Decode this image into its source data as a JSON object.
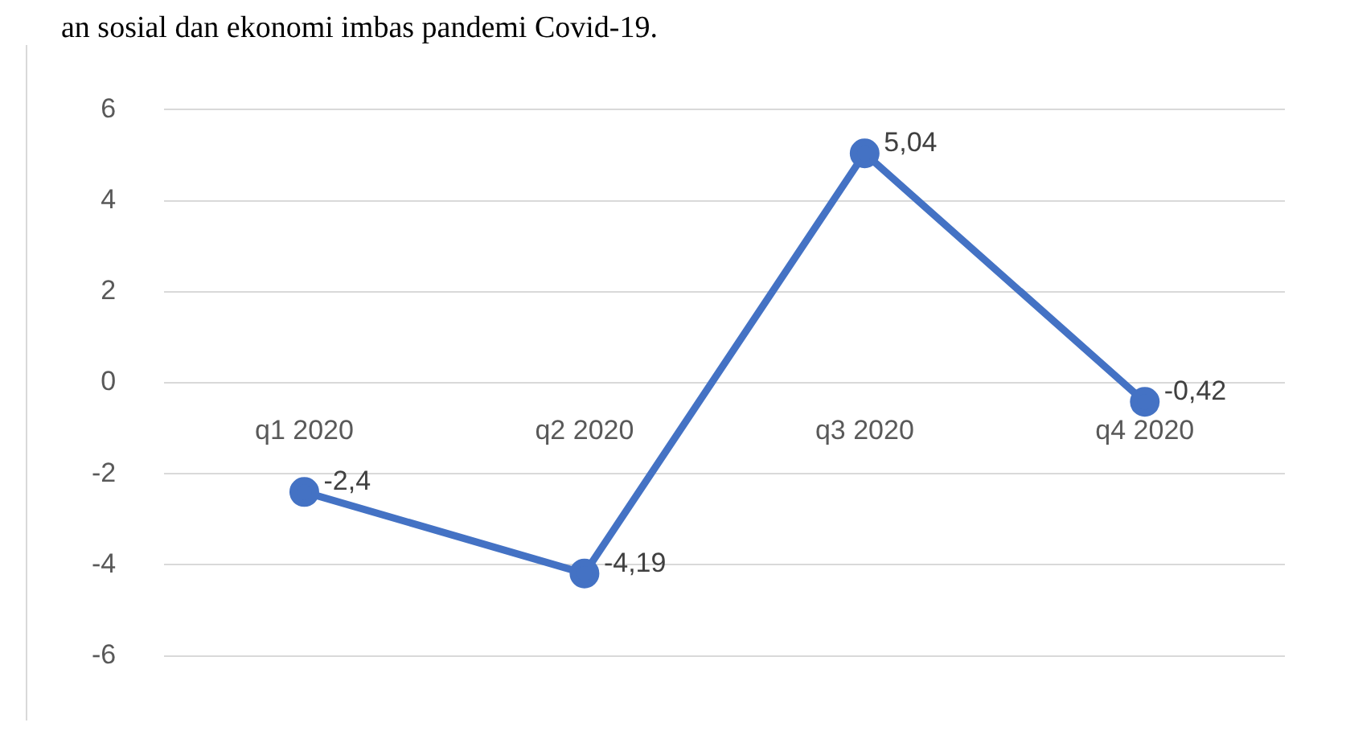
{
  "chart_data": {
    "type": "line",
    "annotations": [
      "an sosial dan ekonomi imbas pandemi Covid-19."
    ],
    "categories": [
      "q1 2020",
      "q2 2020",
      "q3 2020",
      "q4 2020"
    ],
    "series": [
      {
        "color": "#4472c4",
        "values": [
          -2.4,
          -4.19,
          5.04,
          -0.42
        ],
        "value_labels": [
          "-2,4",
          "-4,19",
          "5,04",
          "-0,42"
        ]
      }
    ],
    "ylim": [
      -6,
      6
    ],
    "yticks": [
      -6,
      -4,
      -2,
      0,
      2,
      4,
      6
    ],
    "grid": "y",
    "legend": false,
    "marker": "circle",
    "line_style": "solid"
  }
}
